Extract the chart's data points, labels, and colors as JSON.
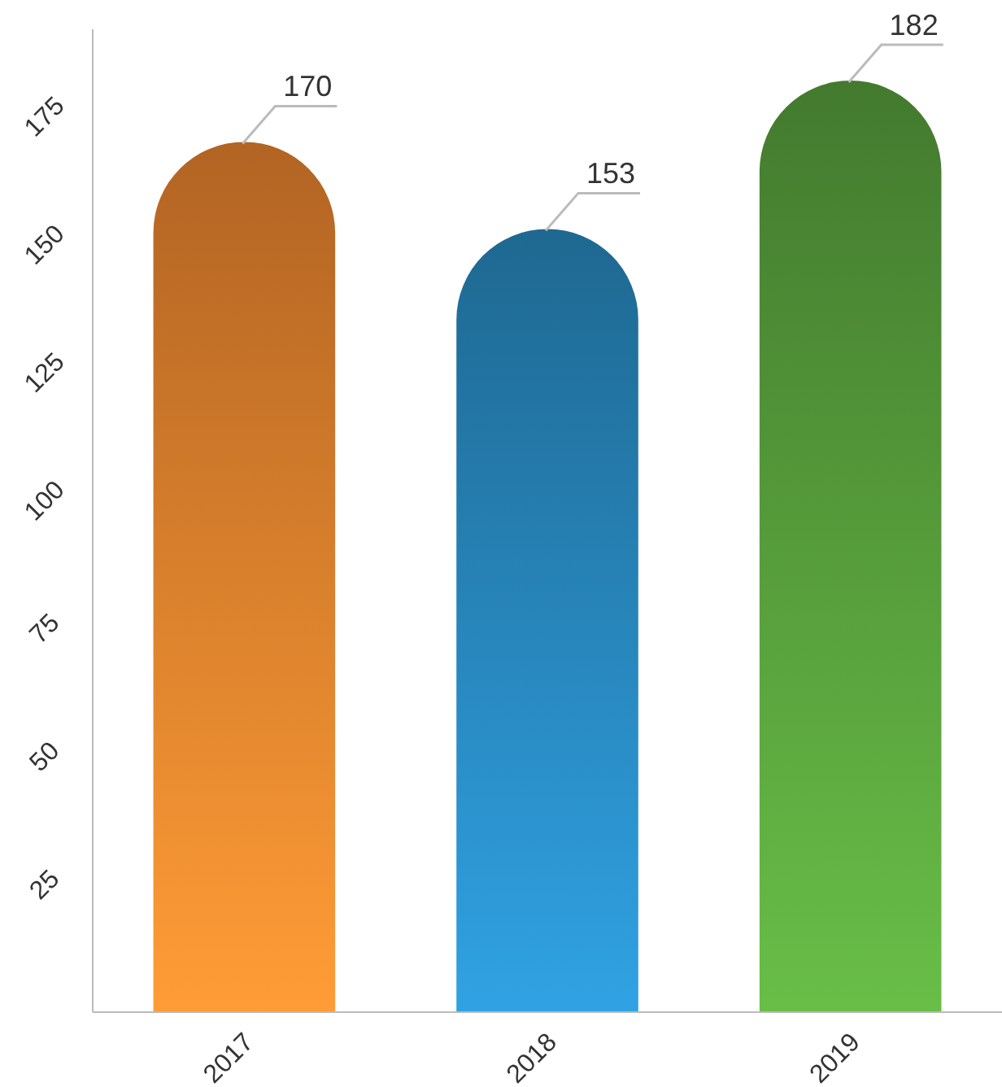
{
  "chart_data": {
    "type": "bar",
    "categories": [
      "2017",
      "2018",
      "2019"
    ],
    "values": [
      170,
      153,
      182
    ],
    "colors": [
      "#f58a30",
      "#2a8fc8",
      "#5ca83f"
    ],
    "ylim": [
      0,
      192
    ],
    "yticks": [
      25,
      50,
      75,
      100,
      125,
      150,
      175
    ],
    "grid": false,
    "data_labels": true
  }
}
